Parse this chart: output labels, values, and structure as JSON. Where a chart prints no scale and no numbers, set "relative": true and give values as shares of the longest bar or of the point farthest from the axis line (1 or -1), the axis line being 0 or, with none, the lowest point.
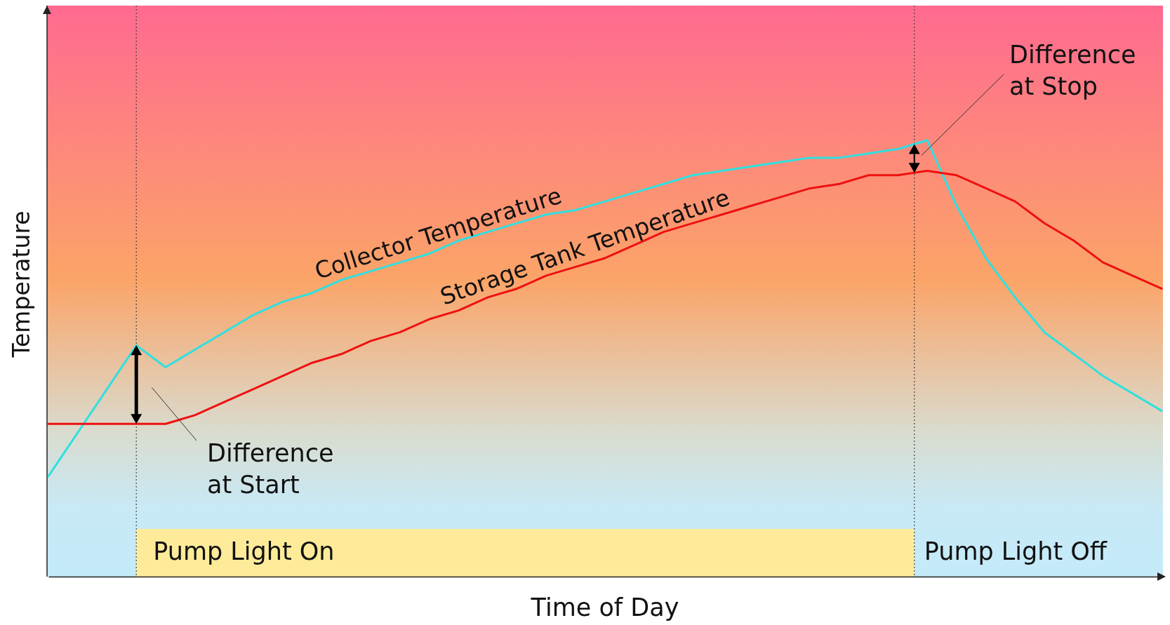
{
  "chart_data": {
    "type": "line",
    "relative": true,
    "tick_labels": false,
    "xlabel": "Time of Day",
    "ylabel": "Temperature",
    "line_style": "solid",
    "categories": [
      null,
      null,
      null,
      null,
      null,
      null,
      null,
      null,
      null,
      null,
      null,
      null,
      null,
      null,
      null,
      null,
      null,
      null,
      null,
      null,
      null,
      null,
      null,
      null,
      null,
      null,
      null,
      null,
      null,
      null,
      null,
      null,
      null,
      null,
      null,
      null,
      null,
      null,
      null
    ],
    "series": [
      {
        "name": "Collector Temperature",
        "color": "#2ee0e0",
        "values": [
          0.23,
          0.33,
          0.43,
          0.53,
          0.48,
          0.52,
          0.56,
          0.6,
          0.63,
          0.65,
          0.68,
          0.7,
          0.72,
          0.74,
          0.77,
          0.79,
          0.81,
          0.83,
          0.84,
          0.86,
          0.88,
          0.9,
          0.92,
          0.93,
          0.94,
          0.95,
          0.96,
          0.96,
          0.97,
          0.98,
          1,
          0.85,
          0.73,
          0.64,
          0.56,
          0.51,
          0.46,
          0.42,
          0.38
        ]
      },
      {
        "name": "Storage Tank Temperature",
        "color": "#ee1111",
        "values": [
          0.35,
          0.35,
          0.35,
          0.35,
          0.35,
          0.37,
          0.4,
          0.43,
          0.46,
          0.49,
          0.51,
          0.54,
          0.56,
          0.59,
          0.61,
          0.64,
          0.66,
          0.69,
          0.71,
          0.73,
          0.76,
          0.79,
          0.81,
          0.83,
          0.85,
          0.87,
          0.89,
          0.9,
          0.92,
          0.92,
          0.93,
          0.92,
          0.89,
          0.86,
          0.81,
          0.77,
          0.72,
          0.69,
          0.66
        ]
      }
    ],
    "annotations": [
      "Difference at Start",
      "Difference at Stop",
      "Pump Light Off",
      "Pump Light On"
    ]
  }
}
